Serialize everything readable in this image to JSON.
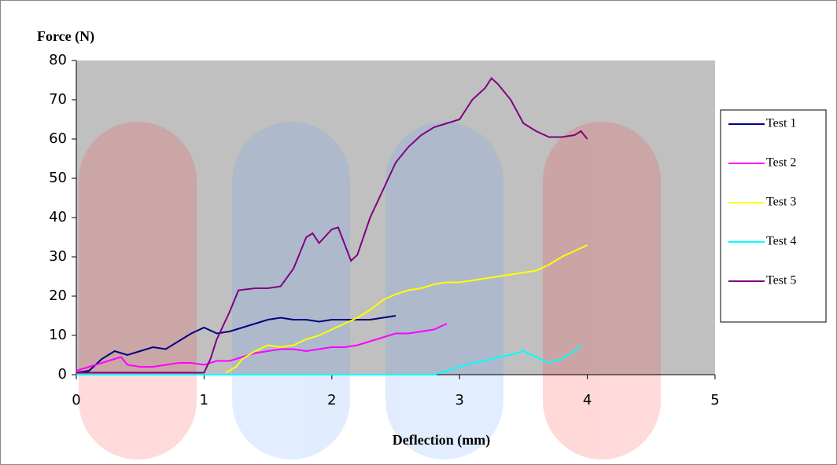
{
  "chart_data": {
    "type": "line",
    "x_label": "Deflection (mm)",
    "y_label": "Force (N)",
    "xlim": [
      0,
      5
    ],
    "xticks": [
      0,
      1,
      2,
      3,
      4,
      5
    ],
    "ylim": [
      0,
      80
    ],
    "yticks": [
      0,
      10,
      20,
      30,
      40,
      50,
      60,
      70,
      80
    ],
    "legend": "right",
    "series": [
      {
        "name": "Test 1",
        "color": "#000080",
        "x": [
          0,
          0.1,
          0.2,
          0.3,
          0.4,
          0.5,
          0.6,
          0.7,
          0.8,
          0.9,
          1.0,
          1.1,
          1.2,
          1.3,
          1.4,
          1.5,
          1.6,
          1.7,
          1.8,
          1.9,
          2.0,
          2.1,
          2.2,
          2.3,
          2.4,
          2.5
        ],
        "values": [
          0.5,
          1,
          4,
          6,
          5,
          6,
          7,
          6.5,
          8.5,
          10.5,
          12,
          10.5,
          11,
          12,
          13,
          14,
          14.5,
          14,
          14,
          13.5,
          14,
          14,
          14,
          14,
          14.5,
          15
        ]
      },
      {
        "name": "Test 2",
        "color": "#ff00ff",
        "x": [
          0,
          0.1,
          0.2,
          0.3,
          0.35,
          0.4,
          0.5,
          0.6,
          0.7,
          0.8,
          0.9,
          1.0,
          1.1,
          1.2,
          1.3,
          1.4,
          1.5,
          1.6,
          1.7,
          1.8,
          1.9,
          2.0,
          2.1,
          2.2,
          2.3,
          2.4,
          2.5,
          2.6,
          2.7,
          2.8,
          2.9
        ],
        "values": [
          1,
          2,
          3,
          4,
          4.5,
          2.5,
          2,
          2,
          2.5,
          3,
          3,
          2.5,
          3.5,
          3.5,
          4.5,
          5.5,
          6,
          6.5,
          6.5,
          6,
          6.5,
          7,
          7,
          7.5,
          8.5,
          9.5,
          10.5,
          10.5,
          11,
          11.5,
          13
        ]
      },
      {
        "name": "Test 3",
        "color": "#ffff00",
        "x": [
          1.17,
          1.25,
          1.3,
          1.4,
          1.5,
          1.6,
          1.7,
          1.8,
          1.9,
          2.0,
          2.1,
          2.2,
          2.3,
          2.4,
          2.5,
          2.6,
          2.7,
          2.8,
          2.9,
          3.0,
          3.1,
          3.2,
          3.3,
          3.4,
          3.5,
          3.6,
          3.7,
          3.8,
          3.9,
          4.0
        ],
        "values": [
          0.5,
          2,
          4,
          6,
          7.5,
          7,
          7.5,
          9,
          10,
          11.5,
          13,
          14.5,
          16.5,
          19,
          20.5,
          21.5,
          22,
          23,
          23.5,
          23.5,
          24,
          24.5,
          25,
          25.5,
          26,
          26.5,
          28,
          30,
          31.5,
          33
        ]
      },
      {
        "name": "Test 4",
        "color": "#00ffff",
        "x": [
          0,
          1.0,
          2.0,
          2.8,
          2.9,
          3.0,
          3.1,
          3.2,
          3.3,
          3.4,
          3.5,
          3.6,
          3.7,
          3.8,
          3.9,
          3.95
        ],
        "values": [
          0,
          0,
          0,
          0,
          1,
          2,
          3,
          3.5,
          4.5,
          5,
          6,
          4.5,
          3,
          4,
          6,
          7.5
        ]
      },
      {
        "name": "Test 5",
        "color": "#800080",
        "x": [
          0,
          0.5,
          1.0,
          1.05,
          1.1,
          1.2,
          1.27,
          1.4,
          1.5,
          1.6,
          1.7,
          1.8,
          1.85,
          1.9,
          2.0,
          2.05,
          2.15,
          2.2,
          2.3,
          2.4,
          2.5,
          2.6,
          2.7,
          2.8,
          2.9,
          3.0,
          3.1,
          3.2,
          3.25,
          3.3,
          3.4,
          3.5,
          3.6,
          3.7,
          3.8,
          3.9,
          3.95,
          4.0
        ],
        "values": [
          0.5,
          0.5,
          0.5,
          4,
          9,
          16,
          21.5,
          22,
          22,
          22.5,
          27,
          35,
          36,
          33.5,
          37,
          37.5,
          29,
          30.5,
          40,
          47,
          54,
          58,
          61,
          63,
          64,
          65,
          70,
          73,
          75.5,
          74,
          70,
          64,
          62,
          60.5,
          60.5,
          61,
          62,
          60
        ]
      }
    ]
  }
}
